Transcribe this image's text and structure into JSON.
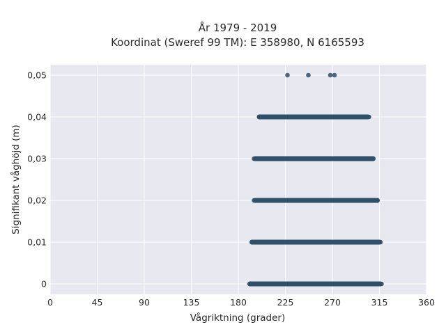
{
  "chart_data": {
    "type": "scatter",
    "title": "År 1979 - 2019",
    "subtitle": "Koordinat (Sweref 99 TM): E 358980, N 6165593",
    "xlabel": "Vågriktning (grader)",
    "ylabel": "Signifikant våghöjd (m)",
    "xlim": [
      0,
      360
    ],
    "ylim": [
      -0.0025,
      0.0525
    ],
    "x_ticks": [
      0,
      45,
      90,
      135,
      180,
      225,
      270,
      315,
      360
    ],
    "x_tick_labels": [
      "0",
      "45",
      "90",
      "135",
      "180",
      "225",
      "270",
      "315",
      "360"
    ],
    "y_ticks": [
      0,
      0.01,
      0.02,
      0.03,
      0.04,
      0.05
    ],
    "y_tick_labels": [
      "0",
      "0,01",
      "0,02",
      "0,03",
      "0,04",
      "0,05"
    ],
    "grid": true,
    "background": "#e8e8f1",
    "point_color": "#2e5068",
    "bands": [
      {
        "y": 0.0,
        "x_start": 191,
        "x_end": 316
      },
      {
        "y": 0.01,
        "x_start": 193,
        "x_end": 315
      },
      {
        "y": 0.02,
        "x_start": 196,
        "x_end": 313
      },
      {
        "y": 0.03,
        "x_start": 196,
        "x_end": 309
      },
      {
        "y": 0.04,
        "x_start": 200,
        "x_end": 304
      }
    ],
    "points": [
      {
        "x": 227,
        "y": 0.05
      },
      {
        "x": 247,
        "y": 0.05
      },
      {
        "x": 268,
        "y": 0.05
      },
      {
        "x": 272,
        "y": 0.05
      },
      {
        "x": 201,
        "y": 0.04
      },
      {
        "x": 203,
        "y": 0.04
      },
      {
        "x": 305,
        "y": 0.04
      },
      {
        "x": 195,
        "y": 0.03
      },
      {
        "x": 308,
        "y": 0.03
      },
      {
        "x": 195,
        "y": 0.02
      },
      {
        "x": 313,
        "y": 0.02
      },
      {
        "x": 193,
        "y": 0.01
      },
      {
        "x": 316,
        "y": 0.01
      },
      {
        "x": 191,
        "y": 0.0
      },
      {
        "x": 317,
        "y": 0.0
      }
    ]
  }
}
